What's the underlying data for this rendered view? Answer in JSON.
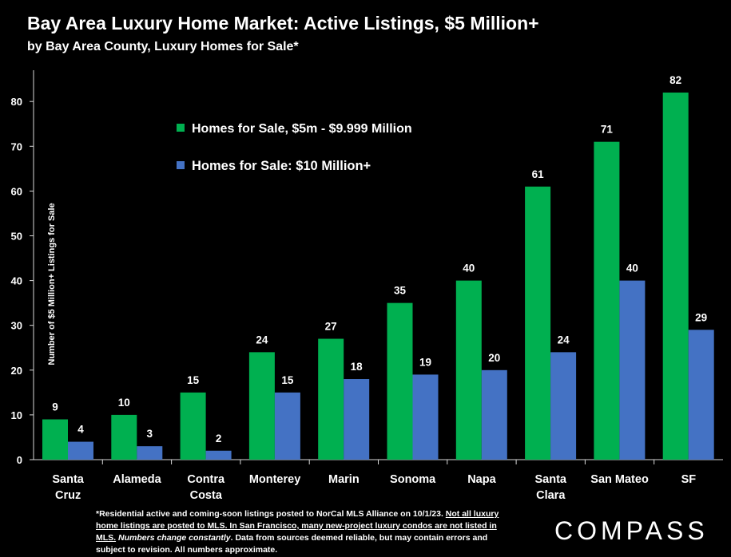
{
  "title": "Bay Area Luxury Home Market: Active Listings, $5 Million+",
  "subtitle": "by Bay Area County, Luxury Homes for Sale*",
  "footnote": {
    "part1": "*Residential active and coming-soon listings posted to NorCal MLS Alliance on 10/1/23. ",
    "part2": "Not all luxury home listings are posted to MLS. In San Francisco, many new-project luxury condos are not listed in MLS.",
    "part3": " ",
    "part4": "Numbers change constantly",
    "part5": ". Data from sources deemed reliable, but may contain errors and subject to revision. All numbers approximate."
  },
  "logo": "COMPASS",
  "chart_data": {
    "type": "bar",
    "categories": [
      "Santa Cruz",
      "Alameda",
      "Contra Costa",
      "Monterey",
      "Marin",
      "Sonoma",
      "Napa",
      "Santa Clara",
      "San Mateo",
      "SF"
    ],
    "category_lines": [
      [
        "Santa",
        "Cruz"
      ],
      [
        "Alameda"
      ],
      [
        "Contra",
        "Costa"
      ],
      [
        "Monterey"
      ],
      [
        "Marin"
      ],
      [
        "Sonoma"
      ],
      [
        "Napa"
      ],
      [
        "Santa",
        "Clara"
      ],
      [
        "San Mateo"
      ],
      [
        "SF"
      ]
    ],
    "series": [
      {
        "name": "Homes for Sale, $5m - $9.999 Million",
        "color": "#00b050",
        "values": [
          9,
          10,
          15,
          24,
          27,
          35,
          40,
          61,
          71,
          82
        ]
      },
      {
        "name": "Homes for Sale:  $10 Million+",
        "color": "#4472c4",
        "values": [
          4,
          3,
          2,
          15,
          18,
          19,
          20,
          24,
          40,
          29
        ]
      }
    ],
    "ylabel": "Number of $5 Million+ Listings for Sale",
    "ylim": [
      0,
      85
    ],
    "yticks": [
      0,
      10,
      20,
      30,
      40,
      50,
      60,
      70,
      80
    ],
    "legend_position": "top-left",
    "grid": false
  }
}
